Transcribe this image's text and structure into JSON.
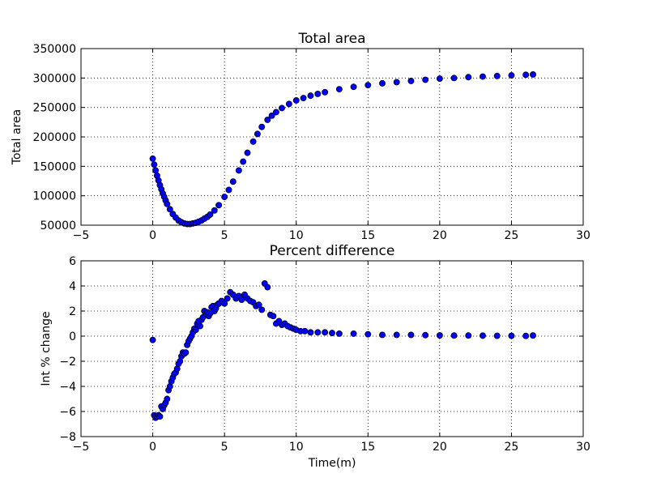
{
  "marker_color": "#0000ff",
  "chart_data": [
    {
      "type": "scatter",
      "title": "Total area",
      "xlabel": "",
      "ylabel": "Total area",
      "xlim": [
        -5,
        30
      ],
      "ylim": [
        50000,
        350000
      ],
      "xticks": [
        -5,
        0,
        5,
        10,
        15,
        20,
        25,
        30
      ],
      "yticks": [
        50000,
        100000,
        150000,
        200000,
        250000,
        300000,
        350000
      ],
      "xtick_labels": [
        "−5",
        "0",
        "5",
        "10",
        "15",
        "20",
        "25",
        "30"
      ],
      "ytick_labels": [
        "50000",
        "100000",
        "150000",
        "200000",
        "250000",
        "300000",
        "350000"
      ],
      "grid": true,
      "x": [
        0.0,
        0.1,
        0.2,
        0.3,
        0.4,
        0.5,
        0.6,
        0.7,
        0.8,
        0.9,
        1.0,
        1.2,
        1.4,
        1.6,
        1.8,
        2.0,
        2.2,
        2.4,
        2.6,
        2.8,
        3.0,
        3.2,
        3.4,
        3.6,
        3.8,
        4.0,
        4.3,
        4.6,
        5.0,
        5.3,
        5.6,
        6.0,
        6.3,
        6.6,
        7.0,
        7.3,
        7.6,
        8.0,
        8.3,
        8.6,
        9.0,
        9.5,
        10.0,
        10.5,
        11.0,
        11.5,
        12.0,
        13.0,
        14.0,
        15.0,
        16.0,
        17.0,
        18.0,
        19.0,
        20.0,
        21.0,
        22.0,
        23.0,
        24.0,
        25.0,
        26.0,
        26.5
      ],
      "y": [
        163000,
        153000,
        143000,
        134000,
        126000,
        118000,
        111000,
        104000,
        98000,
        92000,
        86000,
        77000,
        69000,
        63000,
        58000,
        55000,
        53000,
        52000,
        52000,
        53000,
        54000,
        56000,
        58000,
        61000,
        64000,
        68000,
        75000,
        84000,
        98000,
        110000,
        124000,
        143000,
        158000,
        173000,
        192000,
        205000,
        217000,
        229000,
        236000,
        242000,
        249000,
        256000,
        262000,
        266000,
        270000,
        273000,
        276000,
        281000,
        285000,
        288000,
        291000,
        293000,
        295000,
        297000,
        299000,
        300000,
        301500,
        302500,
        303500,
        304500,
        305500,
        306000
      ]
    },
    {
      "type": "scatter",
      "title": "Percent difference",
      "xlabel": "Time(m)",
      "ylabel": "Int % change",
      "xlim": [
        -5,
        30
      ],
      "ylim": [
        -8,
        6
      ],
      "xticks": [
        -5,
        0,
        5,
        10,
        15,
        20,
        25,
        30
      ],
      "yticks": [
        -8,
        -6,
        -4,
        -2,
        0,
        2,
        4,
        6
      ],
      "xtick_labels": [
        "−5",
        "0",
        "5",
        "10",
        "15",
        "20",
        "25",
        "30"
      ],
      "ytick_labels": [
        "−8",
        "−6",
        "−4",
        "−2",
        "0",
        "2",
        "4",
        "6"
      ],
      "grid": true,
      "x": [
        0.0,
        0.1,
        0.2,
        0.3,
        0.4,
        0.5,
        0.6,
        0.7,
        0.8,
        0.9,
        1.0,
        1.1,
        1.2,
        1.3,
        1.4,
        1.5,
        1.6,
        1.7,
        1.8,
        1.9,
        2.0,
        2.1,
        2.2,
        2.3,
        2.4,
        2.5,
        2.6,
        2.7,
        2.8,
        2.9,
        3.0,
        3.1,
        3.2,
        3.3,
        3.4,
        3.5,
        3.6,
        3.7,
        3.8,
        3.9,
        4.0,
        4.1,
        4.2,
        4.3,
        4.4,
        4.5,
        4.6,
        4.8,
        5.0,
        5.2,
        5.4,
        5.6,
        5.8,
        6.0,
        6.2,
        6.4,
        6.6,
        6.8,
        7.0,
        7.2,
        7.4,
        7.6,
        7.8,
        8.0,
        8.2,
        8.4,
        8.6,
        8.8,
        9.0,
        9.2,
        9.4,
        9.6,
        9.8,
        10.0,
        10.3,
        10.6,
        11.0,
        11.5,
        12.0,
        12.5,
        13.0,
        14.0,
        15.0,
        16.0,
        17.0,
        18.0,
        19.0,
        20.0,
        21.0,
        22.0,
        23.0,
        24.0,
        25.0,
        26.0,
        26.5
      ],
      "y": [
        -0.3,
        -6.3,
        -6.5,
        -6.4,
        -6.3,
        -6.4,
        -5.6,
        -5.8,
        -5.5,
        -5.3,
        -5.0,
        -4.3,
        -4.0,
        -3.6,
        -3.3,
        -3.0,
        -2.9,
        -2.6,
        -2.2,
        -2.0,
        -1.6,
        -1.3,
        -1.4,
        -1.3,
        -0.7,
        -0.4,
        -0.2,
        0.0,
        0.3,
        0.6,
        0.5,
        1.0,
        1.2,
        0.8,
        1.3,
        1.5,
        2.0,
        1.8,
        1.9,
        1.6,
        1.8,
        2.3,
        2.4,
        2.0,
        2.2,
        2.5,
        2.6,
        2.8,
        2.6,
        3.0,
        3.5,
        3.3,
        3.0,
        3.2,
        2.9,
        3.3,
        3.0,
        2.8,
        2.7,
        2.4,
        2.5,
        2.1,
        4.2,
        3.9,
        1.7,
        1.6,
        1.0,
        1.2,
        0.9,
        1.0,
        0.8,
        0.7,
        0.6,
        0.5,
        0.4,
        0.4,
        0.3,
        0.3,
        0.3,
        0.25,
        0.2,
        0.2,
        0.15,
        0.1,
        0.1,
        0.1,
        0.08,
        0.06,
        0.05,
        0.05,
        0.04,
        0.03,
        0.03,
        0.02,
        0.05
      ]
    }
  ]
}
